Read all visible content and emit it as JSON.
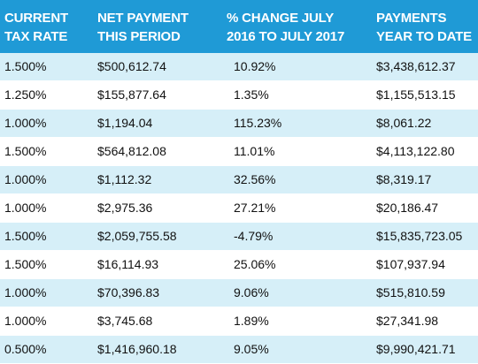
{
  "headers": {
    "tax_rate": [
      "CURRENT",
      "TAX RATE"
    ],
    "net_payment": [
      "NET PAYMENT",
      "THIS PERIOD"
    ],
    "pct_change": [
      "% CHANGE JULY",
      "2016 TO JULY 2017"
    ],
    "ytd": [
      "PAYMENTS",
      "YEAR TO DATE"
    ]
  },
  "rows": [
    {
      "tax_rate": "1.500%",
      "net_payment": "$500,612.74",
      "pct_change": "10.92%",
      "ytd": "$3,438,612.37"
    },
    {
      "tax_rate": "1.250%",
      "net_payment": "$155,877.64",
      "pct_change": "1.35%",
      "ytd": "$1,155,513.15"
    },
    {
      "tax_rate": "1.000%",
      "net_payment": "$1,194.04",
      "pct_change": "115.23%",
      "ytd": "$8,061.22"
    },
    {
      "tax_rate": "1.500%",
      "net_payment": "$564,812.08",
      "pct_change": "11.01%",
      "ytd": "$4,113,122.80"
    },
    {
      "tax_rate": "1.000%",
      "net_payment": "$1,112.32",
      "pct_change": "32.56%",
      "ytd": "$8,319.17"
    },
    {
      "tax_rate": "1.000%",
      "net_payment": "$2,975.36",
      "pct_change": "27.21%",
      "ytd": "$20,186.47"
    },
    {
      "tax_rate": "1.500%",
      "net_payment": "$2,059,755.58",
      "pct_change": "-4.79%",
      "ytd": "$15,835,723.05"
    },
    {
      "tax_rate": "1.500%",
      "net_payment": "$16,114.93",
      "pct_change": "25.06%",
      "ytd": "$107,937.94"
    },
    {
      "tax_rate": "1.000%",
      "net_payment": "$70,396.83",
      "pct_change": "9.06%",
      "ytd": "$515,810.59"
    },
    {
      "tax_rate": "1.000%",
      "net_payment": "$3,745.68",
      "pct_change": "1.89%",
      "ytd": "$27,341.98"
    },
    {
      "tax_rate": "0.500%",
      "net_payment": "$1,416,960.18",
      "pct_change": "9.05%",
      "ytd": "$9,990,421.71"
    }
  ],
  "colors": {
    "header_bg": "#1f9ad6",
    "alt_row_bg": "#d6eff8",
    "plain_row_bg": "#ffffff"
  }
}
